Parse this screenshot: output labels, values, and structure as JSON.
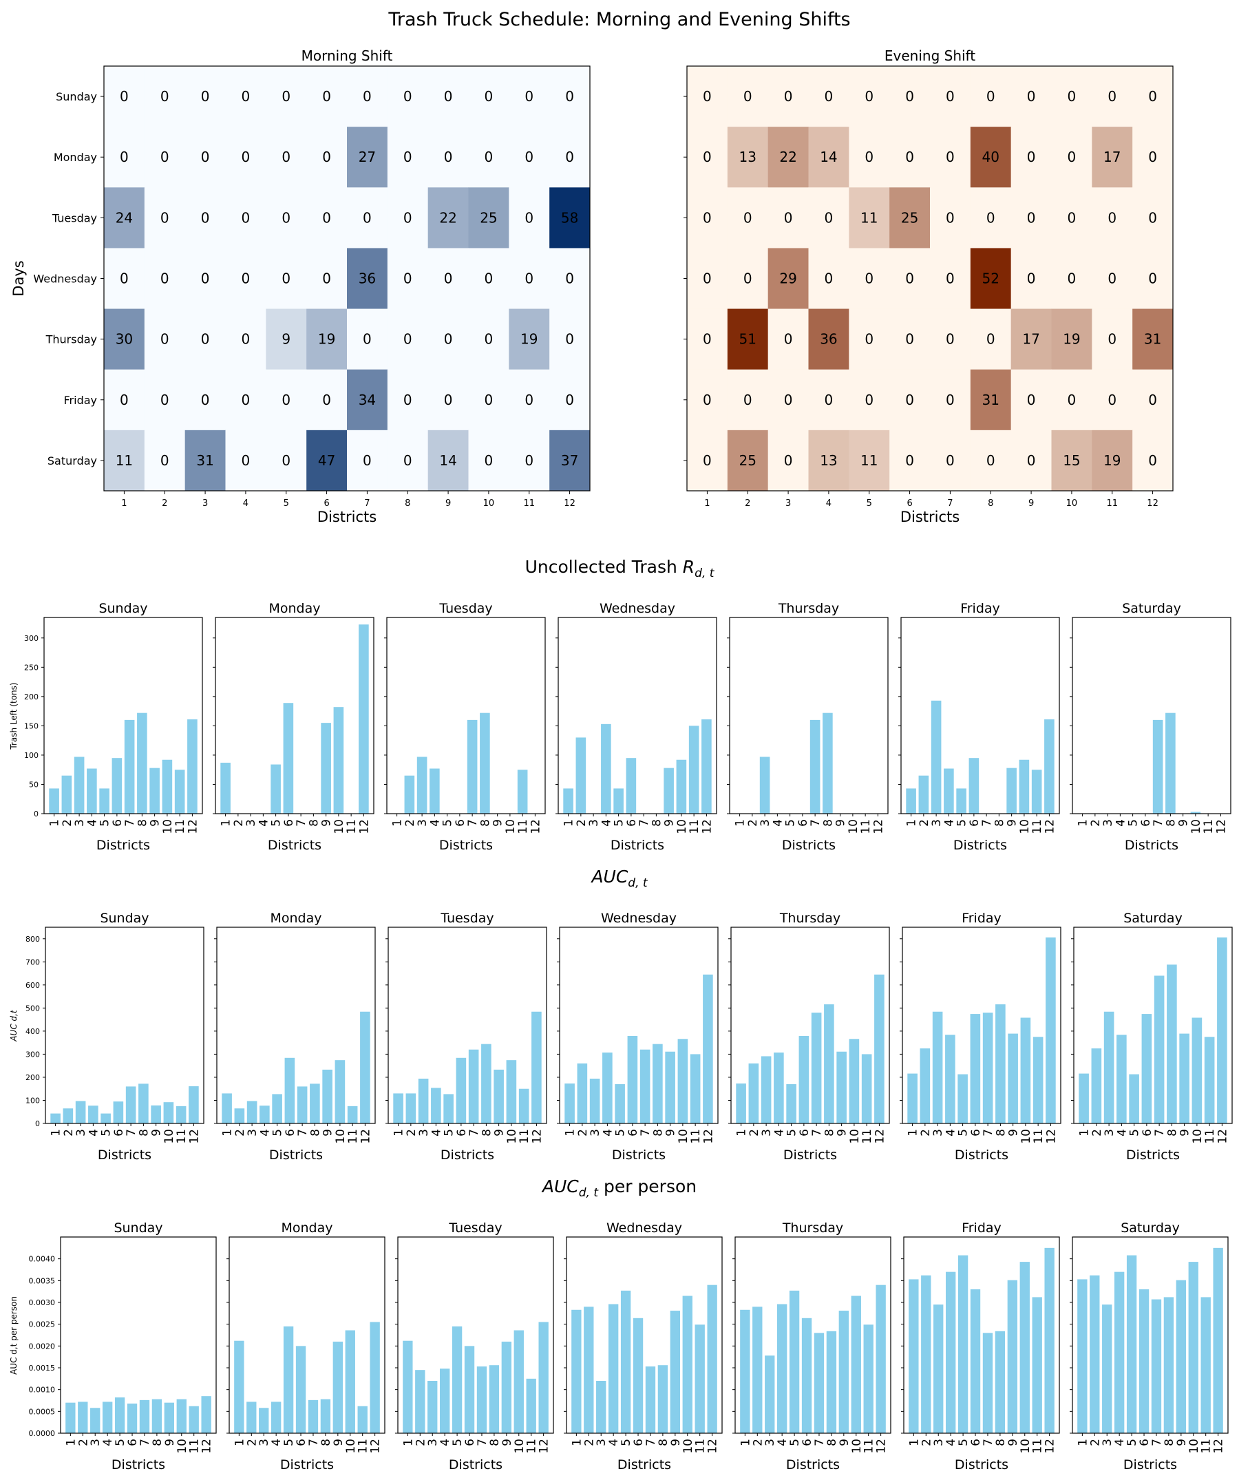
{
  "figure": {
    "title": "Trash Truck Schedule: Morning and Evening Shifts",
    "section_titles": [
      "Uncollected Trash",
      "AUC",
      "per person"
    ]
  },
  "colors": {
    "bar": "#87ceeb",
    "blue_low": "#f7fbff",
    "blue_high": "#08306b",
    "orange_low": "#fff5eb",
    "orange_high": "#7f2704"
  },
  "chart_data": [
    {
      "type": "heatmap",
      "title": "Morning Shift",
      "xlabel": "Districts",
      "ylabel": "Days",
      "colormap": "Blues",
      "x": [
        "1",
        "2",
        "3",
        "4",
        "5",
        "6",
        "7",
        "8",
        "9",
        "10",
        "11",
        "12"
      ],
      "y": [
        "Sunday",
        "Monday",
        "Tuesday",
        "Wednesday",
        "Thursday",
        "Friday",
        "Saturday"
      ],
      "values": [
        [
          0,
          0,
          0,
          0,
          0,
          0,
          0,
          0,
          0,
          0,
          0,
          0
        ],
        [
          0,
          0,
          0,
          0,
          0,
          0,
          27,
          0,
          0,
          0,
          0,
          0
        ],
        [
          24,
          0,
          0,
          0,
          0,
          0,
          0,
          0,
          22,
          25,
          0,
          58
        ],
        [
          0,
          0,
          0,
          0,
          0,
          0,
          36,
          0,
          0,
          0,
          0,
          0
        ],
        [
          30,
          0,
          0,
          0,
          9,
          19,
          0,
          0,
          0,
          0,
          19,
          0
        ],
        [
          0,
          0,
          0,
          0,
          0,
          0,
          34,
          0,
          0,
          0,
          0,
          0
        ],
        [
          11,
          0,
          31,
          0,
          0,
          47,
          0,
          0,
          14,
          0,
          0,
          37
        ]
      ]
    },
    {
      "type": "heatmap",
      "title": "Evening Shift",
      "xlabel": "Districts",
      "colormap": "Oranges",
      "x": [
        "1",
        "2",
        "3",
        "4",
        "5",
        "6",
        "7",
        "8",
        "9",
        "10",
        "11",
        "12"
      ],
      "y": [
        "Sunday",
        "Monday",
        "Tuesday",
        "Wednesday",
        "Thursday",
        "Friday",
        "Saturday"
      ],
      "values": [
        [
          0,
          0,
          0,
          0,
          0,
          0,
          0,
          0,
          0,
          0,
          0,
          0
        ],
        [
          0,
          13,
          22,
          14,
          0,
          0,
          0,
          40,
          0,
          0,
          17,
          0
        ],
        [
          0,
          0,
          0,
          0,
          11,
          25,
          0,
          0,
          0,
          0,
          0,
          0
        ],
        [
          0,
          0,
          29,
          0,
          0,
          0,
          0,
          52,
          0,
          0,
          0,
          0
        ],
        [
          0,
          51,
          0,
          36,
          0,
          0,
          0,
          0,
          17,
          19,
          0,
          31
        ],
        [
          0,
          0,
          0,
          0,
          0,
          0,
          0,
          31,
          0,
          0,
          0,
          0
        ],
        [
          0,
          25,
          0,
          13,
          11,
          0,
          0,
          0,
          0,
          15,
          19,
          0
        ]
      ]
    },
    {
      "type": "bar",
      "group_title": "Uncollected Trash R_{d,t}",
      "ylabel": "Trash Left (tons)",
      "xlabel": "Districts",
      "categories": [
        "1",
        "2",
        "3",
        "4",
        "5",
        "6",
        "7",
        "8",
        "9",
        "10",
        "11",
        "12"
      ],
      "ylim": [
        0,
        335
      ],
      "yticks": [
        0,
        50,
        100,
        150,
        200,
        250,
        300
      ],
      "panels": [
        {
          "title": "Sunday",
          "values": [
            43,
            65,
            97,
            77,
            43,
            95,
            160,
            172,
            78,
            92,
            75,
            161
          ]
        },
        {
          "title": "Monday",
          "values": [
            87,
            0,
            0,
            0,
            84,
            189,
            0,
            0,
            155,
            182,
            0,
            323
          ]
        },
        {
          "title": "Tuesday",
          "values": [
            0,
            65,
            97,
            77,
            0,
            0,
            160,
            172,
            0,
            0,
            75,
            0
          ]
        },
        {
          "title": "Wednesday",
          "values": [
            43,
            130,
            0,
            153,
            43,
            95,
            0,
            0,
            78,
            92,
            150,
            161
          ]
        },
        {
          "title": "Thursday",
          "values": [
            0,
            0,
            97,
            0,
            0,
            0,
            160,
            172,
            0,
            0,
            0,
            0
          ]
        },
        {
          "title": "Friday",
          "values": [
            43,
            65,
            193,
            77,
            43,
            95,
            0,
            0,
            78,
            92,
            75,
            161
          ]
        },
        {
          "title": "Saturday",
          "values": [
            0,
            0,
            0,
            0,
            0,
            0,
            160,
            172,
            0,
            3,
            0,
            0
          ]
        }
      ]
    },
    {
      "type": "bar",
      "group_title": "AUC_{d,t}",
      "ylabel": "AUC_{d,t}",
      "xlabel": "Districts",
      "categories": [
        "1",
        "2",
        "3",
        "4",
        "5",
        "6",
        "7",
        "8",
        "9",
        "10",
        "11",
        "12"
      ],
      "ylim": [
        0,
        850
      ],
      "yticks": [
        0,
        100,
        200,
        300,
        400,
        500,
        600,
        700,
        800
      ],
      "panels": [
        {
          "title": "Sunday",
          "values": [
            43,
            65,
            97,
            77,
            43,
            95,
            160,
            172,
            78,
            92,
            75,
            161
          ]
        },
        {
          "title": "Monday",
          "values": [
            130,
            65,
            97,
            77,
            127,
            284,
            160,
            172,
            233,
            274,
            75,
            484
          ]
        },
        {
          "title": "Tuesday",
          "values": [
            130,
            130,
            194,
            154,
            127,
            284,
            320,
            344,
            233,
            274,
            150,
            484
          ]
        },
        {
          "title": "Wednesday",
          "values": [
            173,
            260,
            194,
            307,
            170,
            379,
            320,
            344,
            311,
            366,
            300,
            645
          ]
        },
        {
          "title": "Thursday",
          "values": [
            173,
            260,
            291,
            307,
            170,
            379,
            480,
            516,
            311,
            366,
            300,
            645
          ]
        },
        {
          "title": "Friday",
          "values": [
            216,
            325,
            484,
            384,
            213,
            474,
            480,
            516,
            389,
            458,
            375,
            806
          ]
        },
        {
          "title": "Saturday",
          "values": [
            216,
            325,
            484,
            384,
            213,
            474,
            640,
            688,
            389,
            458,
            375,
            806
          ]
        }
      ]
    },
    {
      "type": "bar",
      "group_title": "AUC_{d,t} per person",
      "ylabel": "AUC_{d,t} per person",
      "xlabel": "Districts",
      "categories": [
        "1",
        "2",
        "3",
        "4",
        "5",
        "6",
        "7",
        "8",
        "9",
        "10",
        "11",
        "12"
      ],
      "ylim": [
        0,
        0.0045
      ],
      "yticks": [
        0,
        0.0005,
        0.001,
        0.0015,
        0.002,
        0.0025,
        0.003,
        0.0035,
        0.004
      ],
      "ytick_labels": [
        "0.0000",
        "0.0005",
        "0.0010",
        "0.0015",
        "0.0020",
        "0.0025",
        "0.0030",
        "0.0035",
        "0.0040"
      ],
      "panels": [
        {
          "title": "Sunday",
          "values": [
            0.0007,
            0.00072,
            0.00058,
            0.00072,
            0.00082,
            0.00068,
            0.00076,
            0.00078,
            0.0007,
            0.00078,
            0.00062,
            0.00085
          ]
        },
        {
          "title": "Monday",
          "values": [
            0.00212,
            0.00072,
            0.00058,
            0.00072,
            0.00245,
            0.002,
            0.00076,
            0.00078,
            0.0021,
            0.00236,
            0.00062,
            0.00255
          ]
        },
        {
          "title": "Tuesday",
          "values": [
            0.00212,
            0.00145,
            0.0012,
            0.00148,
            0.00245,
            0.002,
            0.00153,
            0.00156,
            0.0021,
            0.00236,
            0.00125,
            0.00255
          ]
        },
        {
          "title": "Wednesday",
          "values": [
            0.00283,
            0.0029,
            0.0012,
            0.00296,
            0.00327,
            0.00264,
            0.00153,
            0.00156,
            0.00281,
            0.00315,
            0.00249,
            0.0034
          ]
        },
        {
          "title": "Thursday",
          "values": [
            0.00283,
            0.0029,
            0.00178,
            0.00296,
            0.00327,
            0.00264,
            0.0023,
            0.00234,
            0.00281,
            0.00315,
            0.00249,
            0.0034
          ]
        },
        {
          "title": "Friday",
          "values": [
            0.00353,
            0.00362,
            0.00295,
            0.0037,
            0.00408,
            0.0033,
            0.0023,
            0.00234,
            0.00351,
            0.00393,
            0.00312,
            0.00425
          ]
        },
        {
          "title": "Saturday",
          "values": [
            0.00353,
            0.00362,
            0.00295,
            0.0037,
            0.00408,
            0.0033,
            0.00307,
            0.00312,
            0.00351,
            0.00393,
            0.00312,
            0.00425
          ]
        }
      ]
    }
  ]
}
